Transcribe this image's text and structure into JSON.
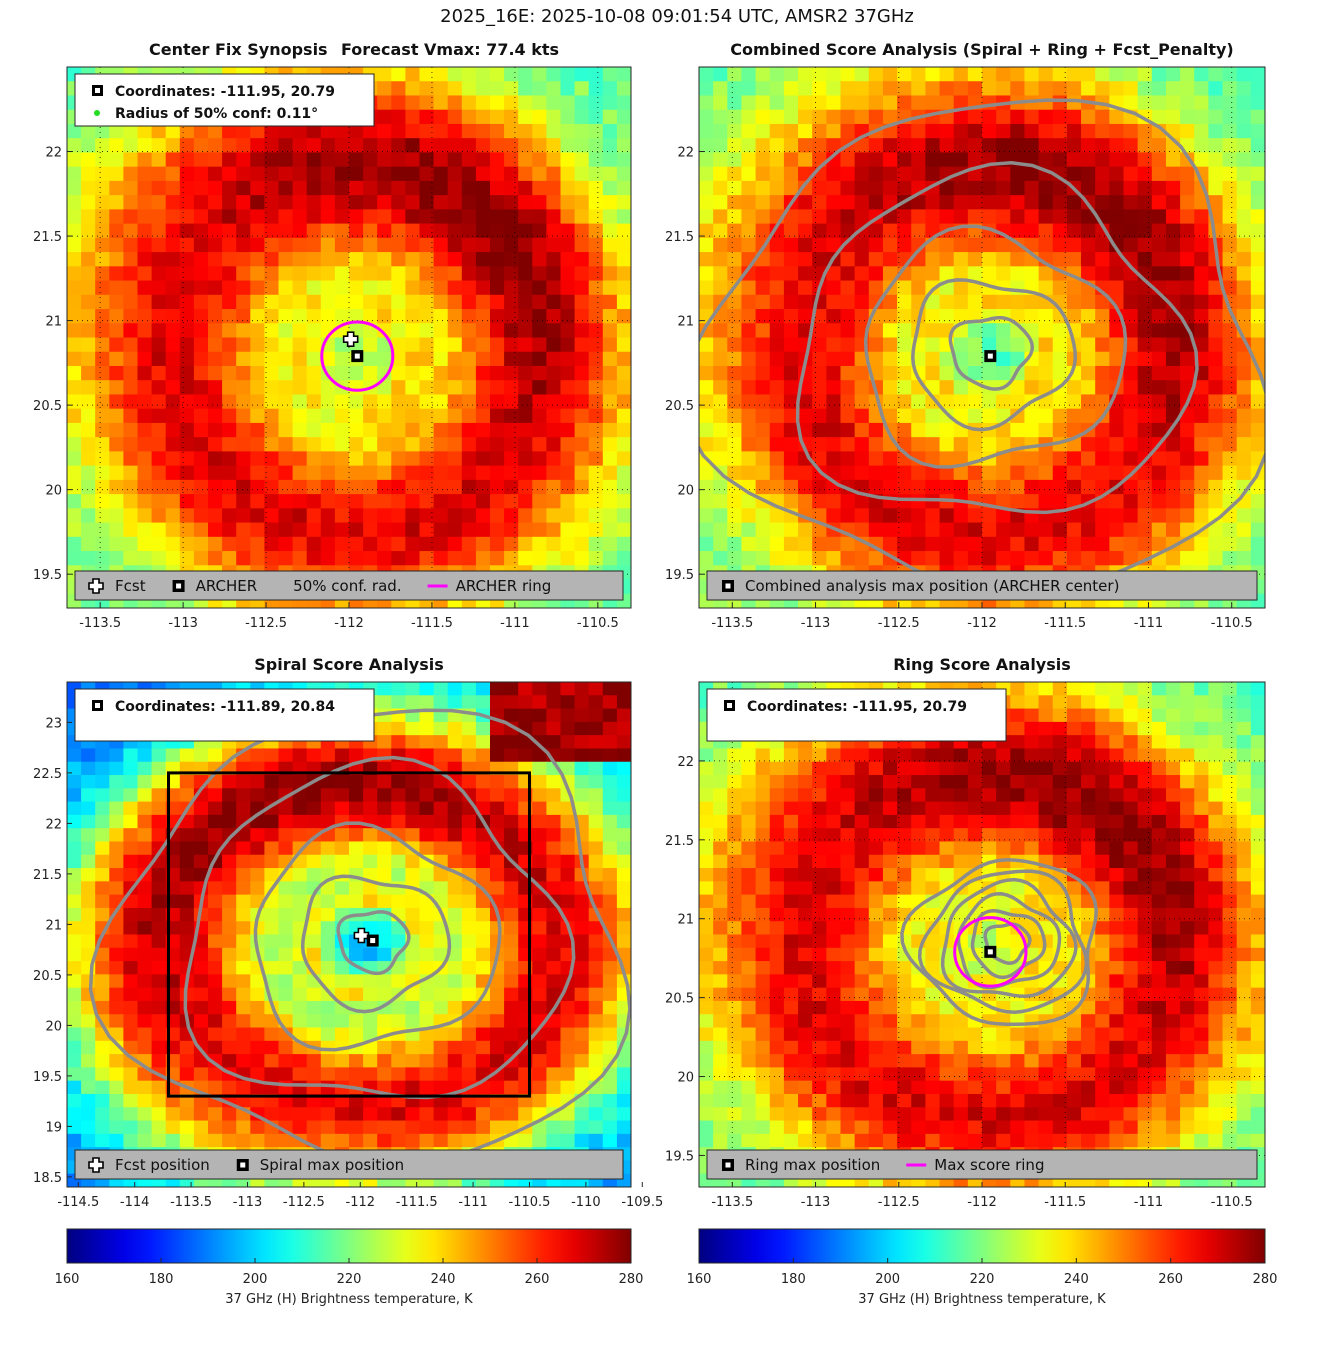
{
  "figure": {
    "title": "2025_16E: 2025-10-08 09:01:54 UTC, AMSR2 37GHz"
  },
  "colors": {
    "fcst_marker": "#ffffff",
    "archer_marker": "#000000",
    "conf_dot": "#22dd22",
    "archer_ring": "#ff00ff",
    "contour": "#8c8c8c",
    "legend_bg": "#b4b4b4",
    "colormap": "jet"
  },
  "chart_data": [
    {
      "id": "center_fix",
      "type": "heatmap",
      "title_left": "Center Fix Synopsis",
      "title_right": "Forecast Vmax: 77.4 kts",
      "xlim": [
        -113.7,
        -110.3
      ],
      "ylim": [
        19.3,
        22.5
      ],
      "xticks": [
        "-113.5",
        "-113",
        "-112.5",
        "-112",
        "-111.5",
        "-111",
        "-110.5"
      ],
      "xtick_values": [
        -113.5,
        -113,
        -112.5,
        -112,
        -111.5,
        -111,
        -110.5
      ],
      "yticks": [
        "19.5",
        "20",
        "20.5",
        "21",
        "21.5",
        "22"
      ],
      "ytick_values": [
        19.5,
        20,
        20.5,
        21,
        21.5,
        22
      ],
      "grid": true,
      "field": {
        "center": [
          -111.95,
          20.79
        ],
        "eye_tb": 224,
        "ring_tb": 268,
        "ring_radius": 1.05,
        "env_tb": 215,
        "spiral": true
      },
      "info_lines": [
        "Coordinates: -111.95, 20.79",
        "Radius of 50% conf: 0.11°"
      ],
      "info_icons": [
        "archer-square",
        "green-dot"
      ],
      "markers": [
        {
          "kind": "fcst",
          "name": "fcst-marker",
          "lon": -111.99,
          "lat": 20.89
        },
        {
          "kind": "archer",
          "name": "archer-marker",
          "lon": -111.95,
          "lat": 20.79
        }
      ],
      "rings": [
        {
          "lon": -111.95,
          "lat": 20.79,
          "radius": 0.21
        }
      ],
      "legend": [
        {
          "icon": "fcst",
          "label": "Fcst"
        },
        {
          "icon": "archer",
          "label": "ARCHER"
        },
        {
          "icon": "none",
          "label": "50% conf. rad."
        },
        {
          "icon": "magenta-line",
          "label": "ARCHER ring"
        }
      ]
    },
    {
      "id": "combined_score",
      "type": "heatmap",
      "title": "Combined Score Analysis (Spiral + Ring + Fcst_Penalty)",
      "xlim": [
        -113.7,
        -110.3
      ],
      "ylim": [
        19.3,
        22.5
      ],
      "xticks": [
        "-113.5",
        "-113",
        "-112.5",
        "-112",
        "-111.5",
        "-111",
        "-110.5"
      ],
      "xtick_values": [
        -113.5,
        -113,
        -112.5,
        -112,
        -111.5,
        -111,
        -110.5
      ],
      "yticks": [
        "19.5",
        "20",
        "20.5",
        "21",
        "21.5",
        "22"
      ],
      "ytick_values": [
        19.5,
        20,
        20.5,
        21,
        21.5,
        22
      ],
      "grid": true,
      "field": {
        "center": [
          -111.95,
          20.79
        ],
        "eye_tb": 215,
        "ring_tb": 268,
        "ring_radius": 1.05,
        "env_tb": 215,
        "spiral": true
      },
      "contours": {
        "center": [
          -111.95,
          20.82
        ],
        "radii": [
          0.22,
          0.45,
          0.72,
          1.08,
          1.55
        ]
      },
      "markers": [
        {
          "kind": "archer",
          "name": "archer-marker",
          "lon": -111.95,
          "lat": 20.79
        }
      ],
      "legend": [
        {
          "icon": "archer",
          "label": "Combined analysis max position (ARCHER center)"
        }
      ]
    },
    {
      "id": "spiral_score",
      "type": "heatmap",
      "title": "Spiral Score Analysis",
      "xlim": [
        -114.6,
        -109.6
      ],
      "ylim": [
        18.4,
        23.4
      ],
      "xticks": [
        "-114.5",
        "-114",
        "-113.5",
        "-113",
        "-112.5",
        "-112",
        "-111.5",
        "-111",
        "-110.5",
        "-110",
        "-109.5"
      ],
      "xtick_values": [
        -114.5,
        -114,
        -113.5,
        -113,
        -112.5,
        -112,
        -111.5,
        -111,
        -110.5,
        -110,
        -109.5
      ],
      "yticks": [
        "18.5",
        "19",
        "19.5",
        "20",
        "20.5",
        "21",
        "21.5",
        "22",
        "22.5",
        "23"
      ],
      "ytick_values": [
        18.5,
        19,
        19.5,
        20,
        20.5,
        21,
        21.5,
        22,
        22.5,
        23
      ],
      "grid": false,
      "field": {
        "center": [
          -111.95,
          20.79
        ],
        "eye_tb": 198,
        "ring_tb": 268,
        "ring_radius": 1.6,
        "env_tb": 186,
        "spiral": true,
        "corner_hot": true
      },
      "contours": {
        "center": [
          -111.89,
          20.84
        ],
        "radii": [
          0.28,
          0.6,
          1.0,
          1.55,
          2.1
        ]
      },
      "box": {
        "x0": -113.7,
        "x1": -110.5,
        "y0": 19.3,
        "y1": 22.5
      },
      "info_lines": [
        "Coordinates: -111.89, 20.84"
      ],
      "info_icons": [
        "archer-square"
      ],
      "markers": [
        {
          "kind": "fcst",
          "name": "fcst-marker",
          "lon": -111.99,
          "lat": 20.89
        },
        {
          "kind": "archer",
          "name": "spiral-max-marker",
          "lon": -111.89,
          "lat": 20.84
        }
      ],
      "legend": [
        {
          "icon": "fcst",
          "label": "Fcst position"
        },
        {
          "icon": "archer",
          "label": "Spiral max position"
        }
      ]
    },
    {
      "id": "ring_score",
      "type": "heatmap",
      "title": "Ring Score Analysis",
      "xlim": [
        -113.7,
        -110.3
      ],
      "ylim": [
        19.3,
        22.5
      ],
      "xticks": [
        "-113.5",
        "-113",
        "-112.5",
        "-112",
        "-111.5",
        "-111",
        "-110.5"
      ],
      "xtick_values": [
        -113.5,
        -113,
        -112.5,
        -112,
        -111.5,
        -111,
        -110.5
      ],
      "yticks": [
        "19.5",
        "20",
        "20.5",
        "21",
        "21.5",
        "22"
      ],
      "ytick_values": [
        19.5,
        20,
        20.5,
        21,
        21.5,
        22
      ],
      "grid": true,
      "field": {
        "center": [
          -111.95,
          20.79
        ],
        "eye_tb": 228,
        "ring_tb": 268,
        "ring_radius": 1.05,
        "env_tb": 215,
        "spiral": true
      },
      "contours": {
        "center": [
          -111.85,
          20.85
        ],
        "radii": [
          0.12,
          0.2,
          0.28,
          0.36,
          0.44,
          0.52
        ]
      },
      "info_lines": [
        "Coordinates: -111.95, 20.79"
      ],
      "info_icons": [
        "archer-square"
      ],
      "markers": [
        {
          "kind": "archer",
          "name": "ring-max-marker",
          "lon": -111.95,
          "lat": 20.79
        }
      ],
      "rings": [
        {
          "lon": -111.95,
          "lat": 20.79,
          "radius": 0.21
        }
      ],
      "legend": [
        {
          "icon": "archer",
          "label": "Ring max position"
        },
        {
          "icon": "magenta-line",
          "label": "Max score ring"
        }
      ]
    }
  ],
  "colorbars": [
    {
      "label": "37 GHz (H) Brightness temperature, K",
      "ticks": [
        "160",
        "180",
        "200",
        "220",
        "240",
        "260",
        "280"
      ],
      "tick_values": [
        160,
        180,
        200,
        220,
        240,
        260,
        280
      ],
      "range": [
        160,
        280
      ]
    },
    {
      "label": "37 GHz (H) Brightness temperature, K",
      "ticks": [
        "160",
        "180",
        "200",
        "220",
        "240",
        "260",
        "280"
      ],
      "tick_values": [
        160,
        180,
        200,
        220,
        240,
        260,
        280
      ],
      "range": [
        160,
        280
      ]
    }
  ]
}
